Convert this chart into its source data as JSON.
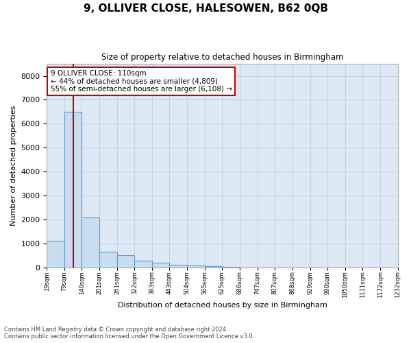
{
  "title": "9, OLLIVER CLOSE, HALESOWEN, B62 0QB",
  "subtitle": "Size of property relative to detached houses in Birmingham",
  "xlabel": "Distribution of detached houses by size in Birmingham",
  "ylabel": "Number of detached properties",
  "footnote1": "Contains HM Land Registry data © Crown copyright and database right 2024.",
  "footnote2": "Contains public sector information licensed under the Open Government Licence v3.0.",
  "annotation_title": "9 OLLIVER CLOSE: 110sqm",
  "annotation_line1": "← 44% of detached houses are smaller (4,809)",
  "annotation_line2": "55% of semi-detached houses are larger (6,108) →",
  "property_size": 110,
  "bar_color": "#c8ddef",
  "bar_edge_color": "#6699cc",
  "vline_color": "#cc0000",
  "annotation_box_edge": "#cc0000",
  "grid_color": "#c5d5e5",
  "plot_bg_color": "#ddeaf5",
  "ylim_max": 8500,
  "yticks": [
    0,
    1000,
    2000,
    3000,
    4000,
    5000,
    6000,
    7000,
    8000
  ],
  "bin_edges": [
    19,
    79,
    140,
    201,
    261,
    322,
    383,
    443,
    504,
    565,
    625,
    686,
    747,
    807,
    868,
    929,
    990,
    1050,
    1111,
    1172,
    1232
  ],
  "bin_labels": [
    "19sqm",
    "79sqm",
    "140sqm",
    "201sqm",
    "261sqm",
    "322sqm",
    "383sqm",
    "443sqm",
    "504sqm",
    "565sqm",
    "625sqm",
    "686sqm",
    "747sqm",
    "807sqm",
    "868sqm",
    "929sqm",
    "990sqm",
    "1050sqm",
    "1111sqm",
    "1172sqm",
    "1232sqm"
  ],
  "bar_heights": [
    1100,
    6500,
    2100,
    650,
    500,
    290,
    200,
    100,
    80,
    50,
    30,
    10,
    5,
    5,
    0,
    0,
    0,
    0,
    0,
    0
  ]
}
